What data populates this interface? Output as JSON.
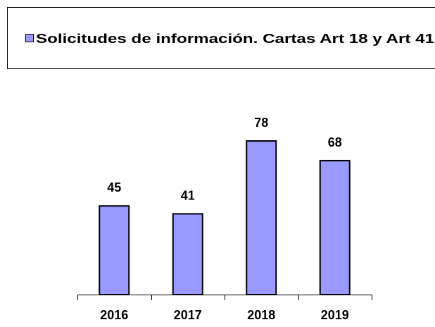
{
  "chart_data": {
    "type": "bar",
    "categories": [
      "2016",
      "2017",
      "2018",
      "2019"
    ],
    "series": [
      {
        "name": "Solicitudes de información. Cartas Art 18 y Art 41",
        "color": "#9999ff",
        "values": [
          45,
          41,
          78,
          68
        ]
      }
    ],
    "legend": "top",
    "grid": false
  }
}
